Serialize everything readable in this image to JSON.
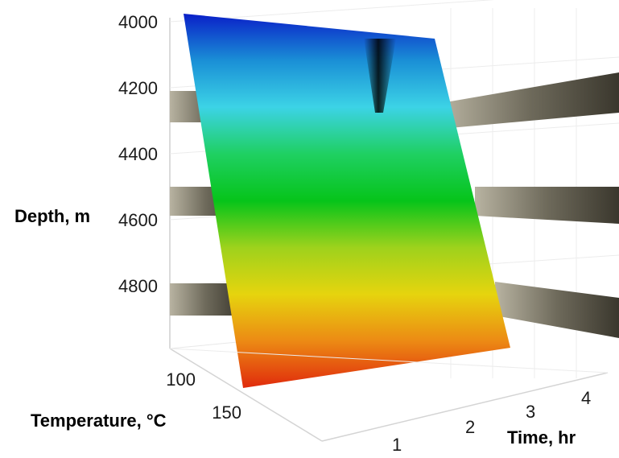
{
  "chart_data": {
    "type": "surface",
    "xlabel": "Time, hr",
    "ylabel": "Depth, m",
    "zlabel": "Temperature, °C",
    "x_ticks": [
      "1",
      "2",
      "3",
      "4"
    ],
    "y_ticks": [
      "4000",
      "4200",
      "4400",
      "4600",
      "4800"
    ],
    "z_ticks": [
      "100",
      "150"
    ],
    "ylim": [
      4000,
      4900
    ],
    "y_reversed": true,
    "surface": {
      "color_low": "#0033cc",
      "color_high": "#cc0000",
      "colormap": [
        "#0a1fc8",
        "#1a8fd6",
        "#3cd3e6",
        "#1fd062",
        "#06c41a",
        "#9ed21c",
        "#e6d40e",
        "#ec8a14",
        "#e02a0c"
      ]
    },
    "grid": true
  }
}
